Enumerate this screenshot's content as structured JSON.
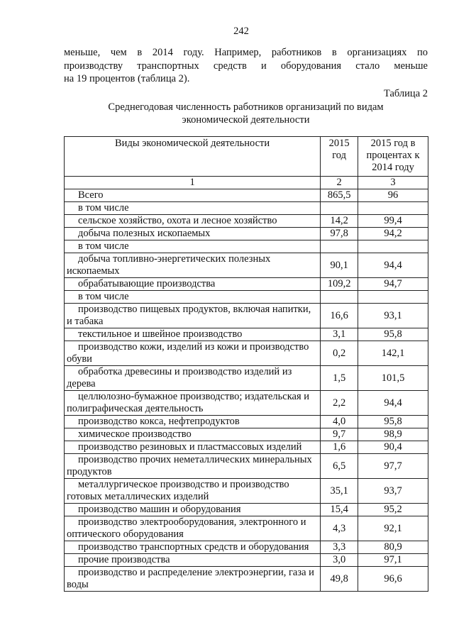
{
  "page_number": "242",
  "paragraph_lines": [
    "меньше, чем в 2014 году. Например, работников в организациях по",
    "производству транспортных средств и оборудования стало меньше",
    "на 19 процентов (таблица 2)."
  ],
  "table_label": "Таблица 2",
  "table_title": [
    "Среднегодовая численность работников организаций по видам",
    "экономической деятельности"
  ],
  "table": {
    "headers": [
      "Виды экономической деятельности",
      "2015 год",
      "2015 год в процентах к 2014 году"
    ],
    "column_numbers": [
      "1",
      "2",
      "3"
    ],
    "rows": [
      {
        "name": "Всего",
        "v2015": "865,5",
        "pct": "96"
      },
      {
        "name": "в том числе",
        "v2015": "",
        "pct": ""
      },
      {
        "name": "сельское хозяйство, охота и лесное хозяйство",
        "v2015": "14,2",
        "pct": "99,4"
      },
      {
        "name": "добыча полезных ископаемых",
        "v2015": "97,8",
        "pct": "94,2"
      },
      {
        "name": "в том числе",
        "v2015": "",
        "pct": ""
      },
      {
        "name": "добыча топливно-энергетических полезных ископаемых",
        "v2015": "90,1",
        "pct": "94,4"
      },
      {
        "name": "обрабатывающие производства",
        "v2015": "109,2",
        "pct": "94,7"
      },
      {
        "name": "в том числе",
        "v2015": "",
        "pct": ""
      },
      {
        "name": "производство пищевых продуктов, включая напитки, и табака",
        "v2015": "16,6",
        "pct": "93,1"
      },
      {
        "name": "текстильное и швейное производство",
        "v2015": "3,1",
        "pct": "95,8"
      },
      {
        "name": "производство кожи, изделий из кожи и производство обуви",
        "v2015": "0,2",
        "pct": "142,1"
      },
      {
        "name": "обработка древесины и производство изделий из дерева",
        "v2015": "1,5",
        "pct": "101,5"
      },
      {
        "name": "целлюлозно-бумажное производство; издательская и полиграфическая деятельность",
        "v2015": "2,2",
        "pct": "94,4"
      },
      {
        "name": "производство кокса, нефтепродуктов",
        "v2015": "4,0",
        "pct": "95,8"
      },
      {
        "name": "химическое производство",
        "v2015": "9,7",
        "pct": "98,9"
      },
      {
        "name": "производство резиновых и пластмассовых изделий",
        "v2015": "1,6",
        "pct": "90,4"
      },
      {
        "name": "производство прочих неметаллических минеральных продуктов",
        "v2015": "6,5",
        "pct": "97,7"
      },
      {
        "name": "металлургическое производство и производство готовых металлических изделий",
        "v2015": "35,1",
        "pct": "93,7"
      },
      {
        "name": "производство машин и оборудования",
        "v2015": "15,4",
        "pct": "95,2"
      },
      {
        "name": "производство электрооборудования, электронного и оптического оборудования",
        "v2015": "4,3",
        "pct": "92,1"
      },
      {
        "name": "производство транспортных средств и оборудования",
        "v2015": "3,3",
        "pct": "80,9"
      },
      {
        "name": "прочие производства",
        "v2015": "3,0",
        "pct": "97,1"
      },
      {
        "name": "производство и распределение электроэнергии, газа и воды",
        "v2015": "49,8",
        "pct": "96,6"
      }
    ]
  }
}
